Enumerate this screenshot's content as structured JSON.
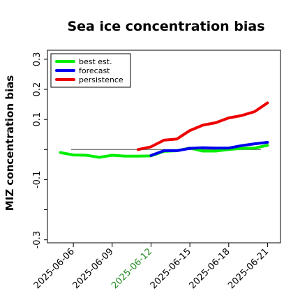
{
  "chart_data": {
    "type": "line",
    "title": "Sea ice concentration bias",
    "xlabel": "",
    "ylabel": "MIZ concentration bias",
    "ylim": [
      -0.31,
      0.33
    ],
    "yticks": [
      -0.3,
      -0.2,
      -0.1,
      0.0,
      0.1,
      0.2,
      0.3
    ],
    "ytick_labels": [
      "-0.3",
      "",
      "-0.1",
      "",
      "0.1",
      "0.2",
      "0.3"
    ],
    "xlim": [
      "2025-06-04",
      "2025-06-22"
    ],
    "xticks": [
      "2025-06-06",
      "2025-06-09",
      "2025-06-12",
      "2025-06-15",
      "2025-06-18",
      "2025-06-21"
    ],
    "highlight_tick": "2025-06-12",
    "highlight_color": "#228b22",
    "zero_line": true,
    "legend_position": "top-left",
    "grid": false,
    "series": [
      {
        "name": "best est.",
        "color": "#00ee00",
        "x": [
          "2025-06-05",
          "2025-06-06",
          "2025-06-07",
          "2025-06-08",
          "2025-06-09",
          "2025-06-10",
          "2025-06-11",
          "2025-06-12",
          "2025-06-13",
          "2025-06-14",
          "2025-06-15",
          "2025-06-16",
          "2025-06-17",
          "2025-06-18",
          "2025-06-19",
          "2025-06-20",
          "2025-06-21"
        ],
        "values": [
          -0.01,
          -0.018,
          -0.019,
          -0.026,
          -0.019,
          -0.022,
          -0.022,
          -0.021,
          -0.006,
          -0.004,
          0.005,
          -0.005,
          -0.005,
          0.0,
          0.004,
          0.005,
          0.014
        ]
      },
      {
        "name": "forecast",
        "color": "#0000ee",
        "x": [
          "2025-06-12",
          "2025-06-13",
          "2025-06-14",
          "2025-06-15",
          "2025-06-16",
          "2025-06-17",
          "2025-06-18",
          "2025-06-19",
          "2025-06-20",
          "2025-06-21"
        ],
        "values": [
          -0.02,
          -0.004,
          -0.004,
          0.004,
          0.006,
          0.005,
          0.005,
          0.013,
          0.019,
          0.024
        ]
      },
      {
        "name": "persistence",
        "color": "#ee0000",
        "x": [
          "2025-06-11",
          "2025-06-12",
          "2025-06-13",
          "2025-06-14",
          "2025-06-15",
          "2025-06-16",
          "2025-06-17",
          "2025-06-18",
          "2025-06-19",
          "2025-06-20",
          "2025-06-21"
        ],
        "values": [
          0.0,
          0.009,
          0.031,
          0.035,
          0.063,
          0.081,
          0.089,
          0.105,
          0.113,
          0.126,
          0.155
        ]
      }
    ]
  }
}
